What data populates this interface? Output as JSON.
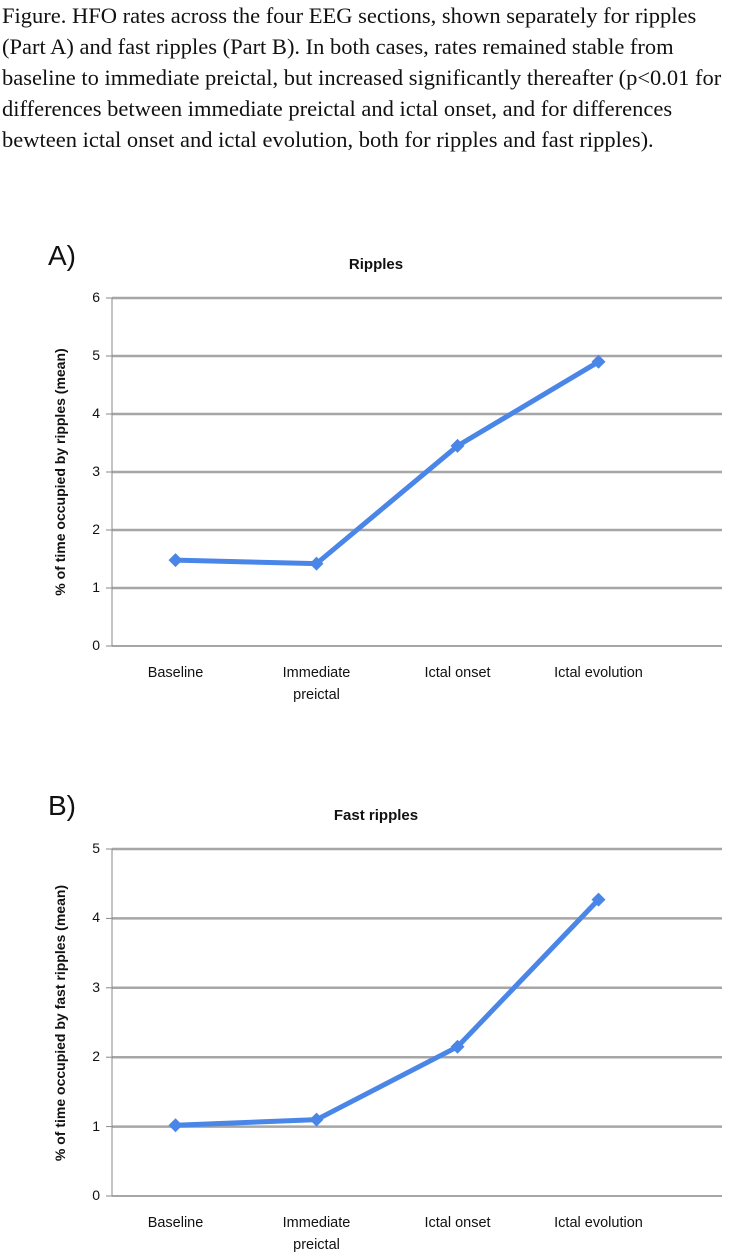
{
  "caption": "Figure. HFO rates across the four EEG sections, shown separately for ripples (Part A) and fast  ripples (Part B). In both cases, rates remained stable from baseline to immediate preictal, but increased significantly thereafter (p<0.01 for differences between immediate preictal and ictal onset, and for differences bewteen ictal onset and ictal evolution, both for ripples and fast ripples).",
  "chart_data": [
    {
      "type": "line",
      "panel_label": "A)",
      "title": "Ripples",
      "y_label": "% of time occupied by ripples (mean)",
      "categories": [
        "Baseline",
        "Immediate preictal",
        "Ictal onset",
        "Ictal evolution"
      ],
      "values": [
        1.48,
        1.42,
        3.45,
        4.9
      ],
      "color": "#4a86e8",
      "ylim": [
        0,
        6
      ],
      "yticks": [
        0,
        1,
        2,
        3,
        4,
        5,
        6
      ],
      "grid": true
    },
    {
      "type": "line",
      "panel_label": "B)",
      "title": "Fast ripples",
      "y_label": "% of time occupied by fast ripples (mean)",
      "categories": [
        "Baseline",
        "Immediate preictal",
        "Ictal onset",
        "Ictal evolution"
      ],
      "values": [
        1.02,
        1.1,
        2.15,
        4.27
      ],
      "color": "#4a86e8",
      "ylim": [
        0,
        5
      ],
      "yticks": [
        0,
        1,
        2,
        3,
        4,
        5
      ],
      "grid": true
    }
  ]
}
